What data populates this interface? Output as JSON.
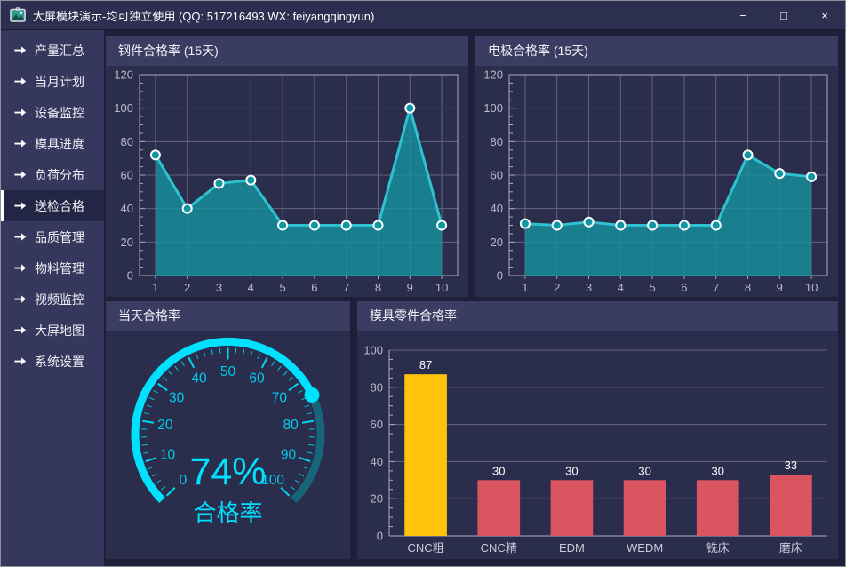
{
  "window": {
    "title": "大屏模块演示-均可独立使用 (QQ: 517216493  WX: feiyangqingyun)",
    "controls": {
      "minimize": "−",
      "maximize": "□",
      "close": "×"
    }
  },
  "sidebar": {
    "active_index": 5,
    "items": [
      {
        "label": "产量汇总"
      },
      {
        "label": "当月计划"
      },
      {
        "label": "设备监控"
      },
      {
        "label": "模具进度"
      },
      {
        "label": "负荷分布"
      },
      {
        "label": "送检合格"
      },
      {
        "label": "品质管理"
      },
      {
        "label": "物料管理"
      },
      {
        "label": "视频监控"
      },
      {
        "label": "大屏地图"
      },
      {
        "label": "系统设置"
      }
    ]
  },
  "colors": {
    "teal_line": "#2ec1cf",
    "teal_fill": "#16919f",
    "marker_fill": "#0d96a4",
    "marker_ring": "#ffffff",
    "gauge_active": "#00e0ff",
    "gauge_rest": "#17657b",
    "gauge_text": "#00cdeb",
    "bar_yellow": "#fec30a",
    "bar_red": "#da5560",
    "grid": "#8e90a8",
    "axis": "#a9abbe",
    "axis_text": "#b9bbca",
    "value_label": "#ffffff"
  },
  "chart_data": [
    {
      "id": "steel",
      "type": "area",
      "title": "钢件合格率 (15天)",
      "x": [
        1,
        2,
        3,
        4,
        5,
        6,
        7,
        8,
        9,
        10
      ],
      "values": [
        72,
        40,
        55,
        57,
        30,
        30,
        30,
        30,
        100,
        30
      ],
      "ylim": [
        0,
        120
      ],
      "yticks": [
        0,
        20,
        40,
        60,
        80,
        100,
        120
      ],
      "grid": "full"
    },
    {
      "id": "electrode",
      "type": "area",
      "title": "电极合格率 (15天)",
      "x": [
        1,
        2,
        3,
        4,
        5,
        6,
        7,
        8,
        9,
        10
      ],
      "values": [
        31,
        30,
        32,
        30,
        30,
        30,
        30,
        72,
        61,
        59
      ],
      "ylim": [
        0,
        120
      ],
      "yticks": [
        0,
        20,
        40,
        60,
        80,
        100,
        120
      ],
      "grid": "full"
    },
    {
      "id": "today",
      "type": "gauge",
      "title": "当天合格率",
      "value": 74,
      "min": 0,
      "max": 100,
      "tick_labels": [
        0,
        10,
        20,
        30,
        40,
        50,
        60,
        70,
        80,
        90,
        100
      ],
      "center_value_text": "74%",
      "center_label": "合格率"
    },
    {
      "id": "mold",
      "type": "bar",
      "title": "模具零件合格率",
      "categories": [
        "CNC粗",
        "CNC精",
        "EDM",
        "WEDM",
        "铣床",
        "磨床"
      ],
      "values": [
        87,
        30,
        30,
        30,
        30,
        33
      ],
      "bar_colors": [
        "#fec30a",
        "#da5560",
        "#da5560",
        "#da5560",
        "#da5560",
        "#da5560"
      ],
      "ylim": [
        0,
        100
      ],
      "yticks": [
        0,
        20,
        40,
        60,
        80,
        100
      ],
      "grid": "horizontal"
    }
  ]
}
